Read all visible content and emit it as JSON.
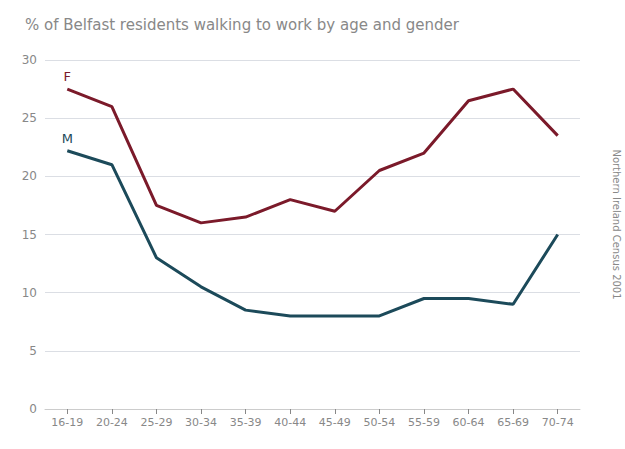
{
  "chart_data": {
    "type": "line",
    "title": "% of Belfast residents walking to work by age and gender",
    "categories": [
      "16-19",
      "20-24",
      "25-29",
      "30-34",
      "35-39",
      "40-44",
      "45-49",
      "50-54",
      "55-59",
      "60-64",
      "65-69",
      "70-74"
    ],
    "series": [
      {
        "name": "F",
        "color": "#7B1A2A",
        "values": [
          27.5,
          26.0,
          17.5,
          16.0,
          16.5,
          18.0,
          17.0,
          20.5,
          22.0,
          26.5,
          27.5,
          23.5
        ]
      },
      {
        "name": "M",
        "color": "#1C4A5A",
        "values": [
          22.2,
          21.0,
          13.0,
          10.5,
          8.5,
          8.0,
          8.0,
          8.0,
          9.5,
          9.5,
          9.0,
          15.0
        ]
      }
    ],
    "ylim": [
      0,
      30
    ],
    "yticks": [
      0,
      5,
      10,
      15,
      20,
      25,
      30
    ],
    "grid": true,
    "annotations": [
      "Northern Ireland Census 2001"
    ]
  }
}
